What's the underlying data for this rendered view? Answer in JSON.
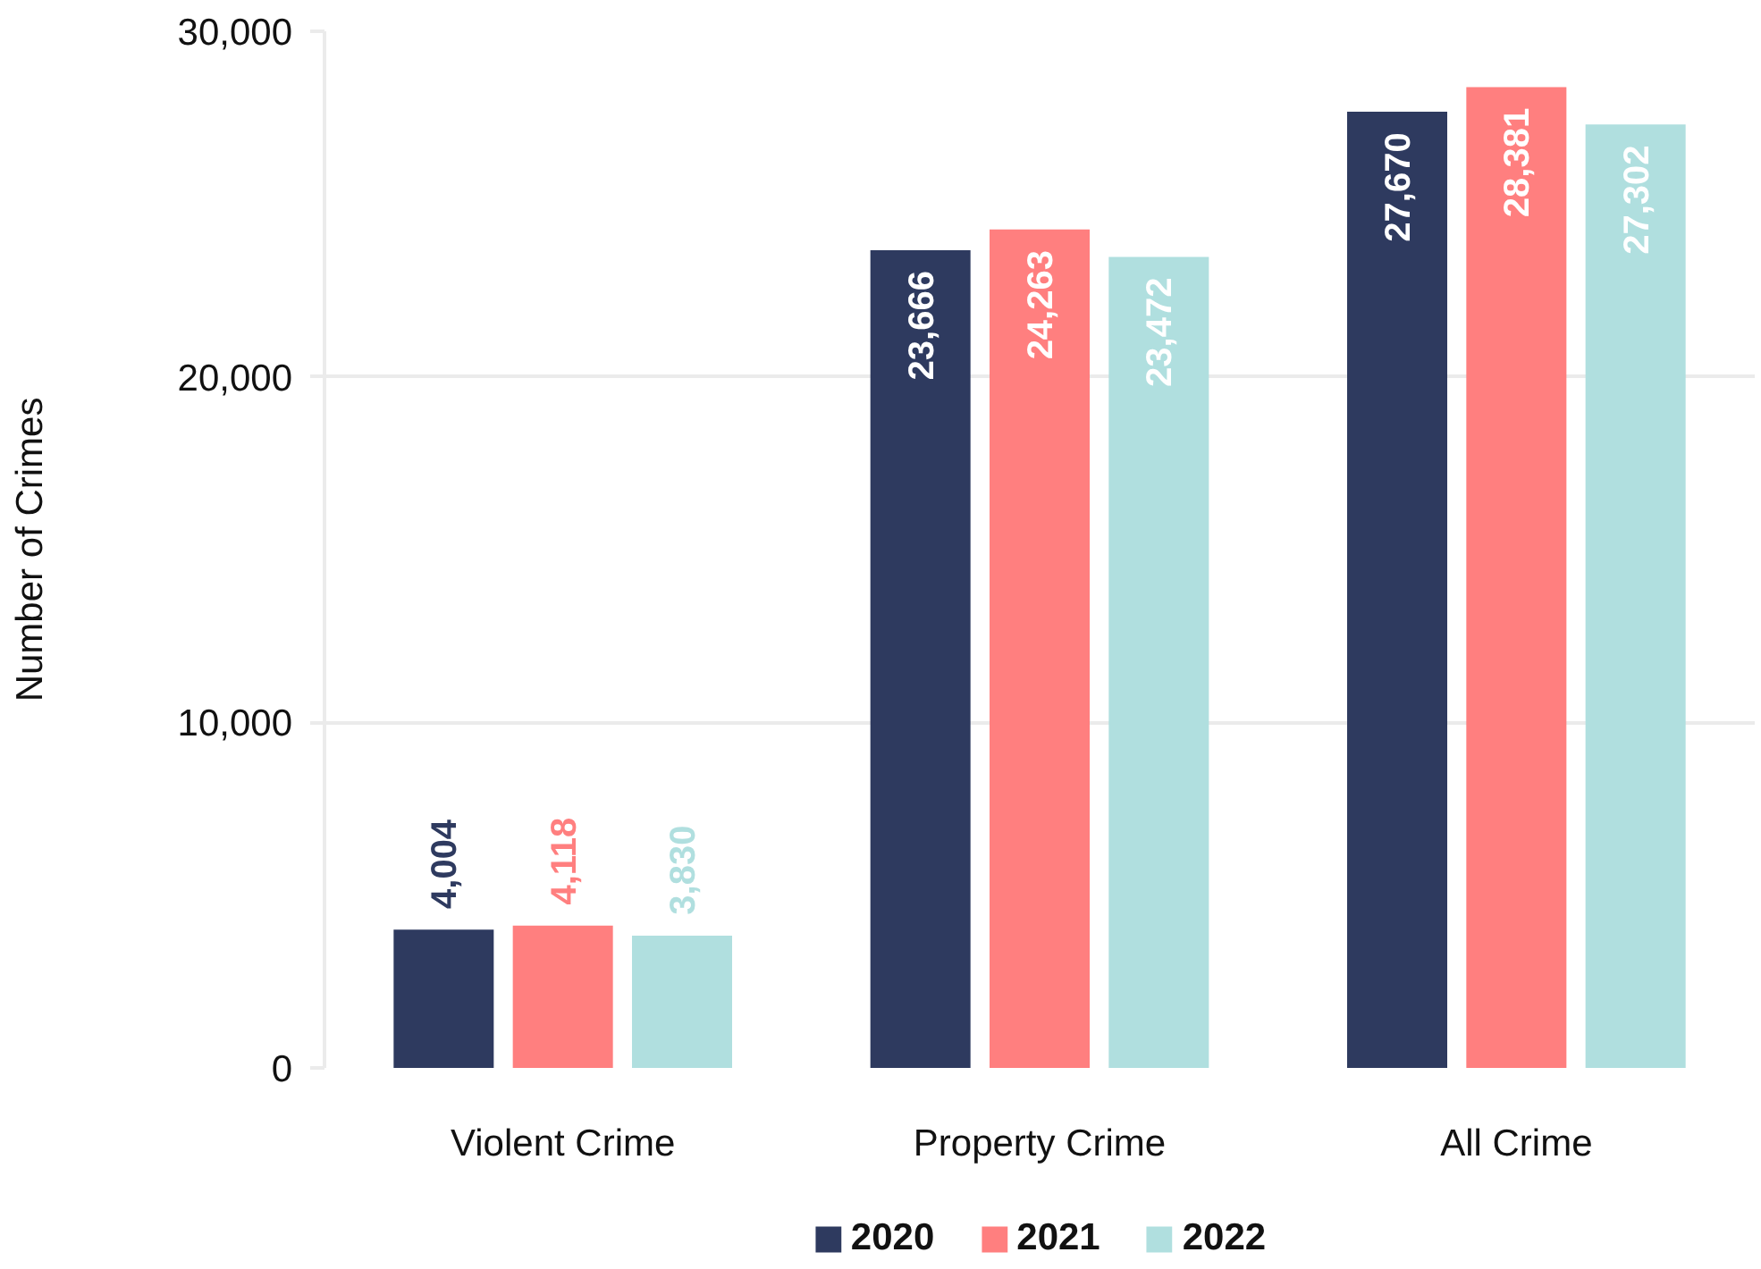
{
  "chart_data": {
    "type": "bar",
    "ylabel": "Number of Crimes",
    "categories": [
      "Violent Crime",
      "Property Crime",
      "All Crime"
    ],
    "series": [
      {
        "name": "2020",
        "color": "#2e3a5f",
        "values": [
          4004,
          23666,
          27670
        ],
        "value_labels": [
          "4,004",
          "23,666",
          "27,670"
        ]
      },
      {
        "name": "2021",
        "color": "#ff7f7f",
        "values": [
          4118,
          24263,
          28381
        ],
        "value_labels": [
          "4,118",
          "24,263",
          "28,381"
        ]
      },
      {
        "name": "2022",
        "color": "#b0dfdf",
        "values": [
          3830,
          23472,
          27302
        ],
        "value_labels": [
          "3,830",
          "23,472",
          "27,302"
        ]
      }
    ],
    "ylim": [
      0,
      30000
    ],
    "yticks": [
      {
        "value": 0,
        "label": "0"
      },
      {
        "value": 10000,
        "label": "10,000"
      },
      {
        "value": 20000,
        "label": "20,000"
      },
      {
        "value": 30000,
        "label": "30,000"
      }
    ],
    "grid": "y",
    "legend": "bottom"
  }
}
